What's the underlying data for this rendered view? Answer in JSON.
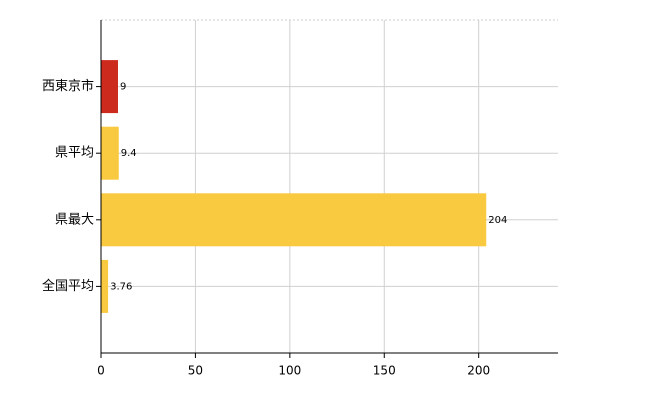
{
  "chart_data": {
    "type": "hbar",
    "categories": [
      "西東京市",
      "県平均",
      "県最大",
      "全国平均"
    ],
    "values": [
      9,
      9.4,
      204,
      3.76
    ],
    "colors": [
      "#cc2a1c",
      "#f9c940",
      "#f9c940",
      "#f9c940"
    ],
    "xlim": [
      0,
      242
    ],
    "xticks": [
      0,
      50,
      100,
      150,
      200
    ],
    "grid": true
  }
}
